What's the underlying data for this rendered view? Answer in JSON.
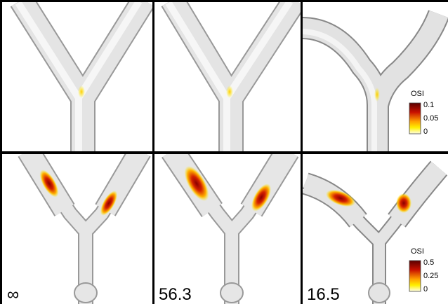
{
  "panels": [
    {
      "label": "∞"
    },
    {
      "label": "56.3"
    },
    {
      "label": "16.5"
    }
  ],
  "colorbars": [
    {
      "title": "OSI",
      "ticks": [
        "0.1",
        "0.05",
        "0"
      ]
    },
    {
      "title": "OSI",
      "ticks": [
        "0.5",
        "0.25",
        "0"
      ]
    }
  ]
}
